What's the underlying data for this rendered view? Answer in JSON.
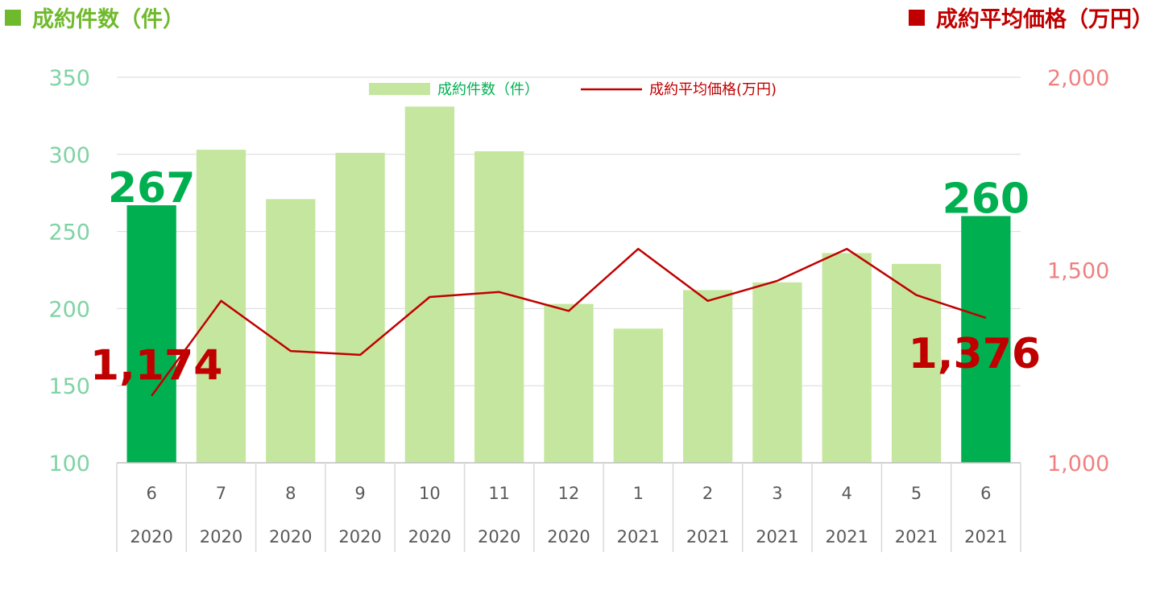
{
  "header": {
    "left_title": "成約件数（件）",
    "right_title": "成約平均価格（万円）",
    "left_color": "#6fba2c",
    "right_color": "#c00000"
  },
  "legend": {
    "bar_label": "成約件数（件）",
    "line_label": "成約平均価格(万円)"
  },
  "chart_data": {
    "type": "bar",
    "categories": [
      {
        "month": "6",
        "year": "2020"
      },
      {
        "month": "7",
        "year": "2020"
      },
      {
        "month": "8",
        "year": "2020"
      },
      {
        "month": "9",
        "year": "2020"
      },
      {
        "month": "10",
        "year": "2020"
      },
      {
        "month": "11",
        "year": "2020"
      },
      {
        "month": "12",
        "year": "2020"
      },
      {
        "month": "1",
        "year": "2021"
      },
      {
        "month": "2",
        "year": "2021"
      },
      {
        "month": "3",
        "year": "2021"
      },
      {
        "month": "4",
        "year": "2021"
      },
      {
        "month": "5",
        "year": "2021"
      },
      {
        "month": "6",
        "year": "2021"
      }
    ],
    "series": [
      {
        "name": "成約件数（件）",
        "type": "bar",
        "axis": "left",
        "values": [
          267,
          303,
          271,
          301,
          331,
          302,
          203,
          187,
          212,
          217,
          236,
          229,
          260
        ],
        "color": "#c5e69f",
        "highlight_color": "#00b050",
        "highlight_indices": [
          0,
          12
        ]
      },
      {
        "name": "成約平均価格(万円)",
        "type": "line",
        "axis": "right",
        "values": [
          1174,
          1420,
          1290,
          1280,
          1430,
          1443,
          1394,
          1555,
          1420,
          1472,
          1555,
          1435,
          1376
        ],
        "color": "#c00000"
      }
    ],
    "y_left": {
      "min": 100,
      "max": 350,
      "ticks": [
        100,
        150,
        200,
        250,
        300,
        350
      ],
      "tick_labels": [
        "100",
        "150",
        "200",
        "250",
        "300",
        "350"
      ]
    },
    "y_right": {
      "min": 1000,
      "max": 2000,
      "ticks": [
        1000,
        1500,
        2000
      ],
      "tick_labels": [
        "1,000",
        "1,500",
        "2,000"
      ]
    },
    "grid": true,
    "legend_position": "top-center",
    "annotations": [
      {
        "label": "267",
        "series": 0,
        "index": 0
      },
      {
        "label": "260",
        "series": 0,
        "index": 12
      },
      {
        "label": "1,174",
        "series": 1,
        "index": 0
      },
      {
        "label": "1,376",
        "series": 1,
        "index": 12
      }
    ]
  }
}
